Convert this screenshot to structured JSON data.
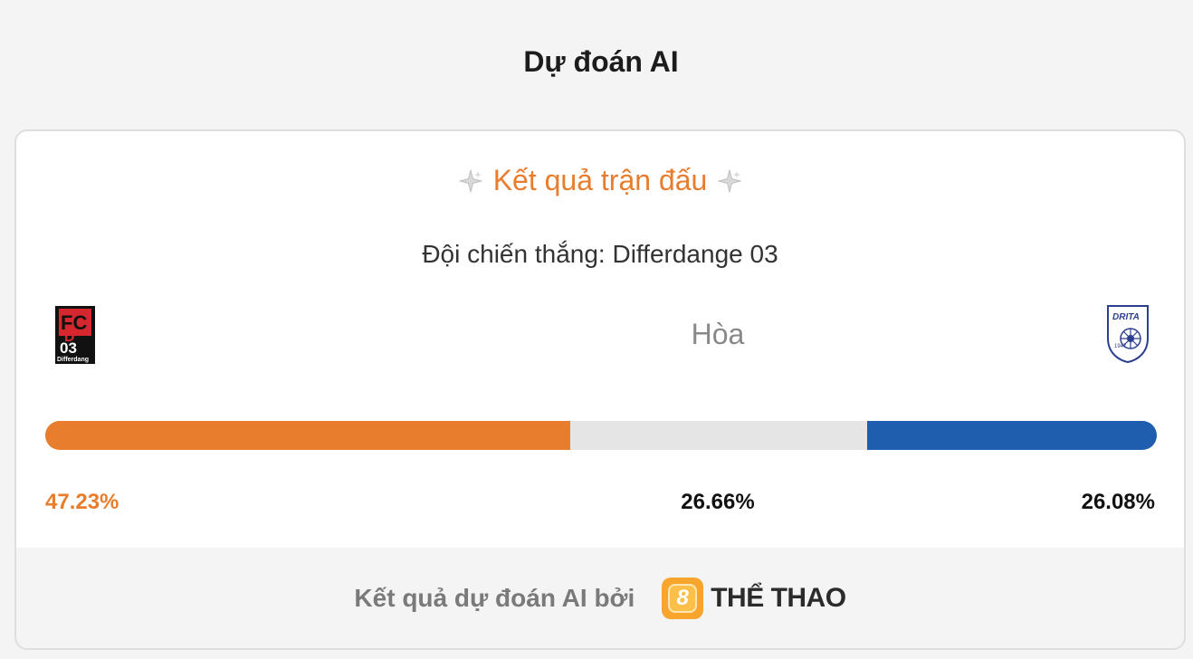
{
  "page": {
    "title": "Dự đoán AI"
  },
  "card": {
    "heading": "Kết quả trận đấu",
    "winner_prefix": "Đội chiến thắng: ",
    "winner_team": "Differdange 03",
    "draw_label": "Hòa",
    "home_team": {
      "logo_text_top": "FC",
      "logo_text_mid": "D",
      "logo_text_num": "03",
      "logo_caption": "Differdang"
    },
    "away_team": {
      "logo_text": "DRITA",
      "logo_year": "1947"
    },
    "probabilities": {
      "home": 47.23,
      "draw": 26.66,
      "away": 26.08,
      "home_label": "47.23%",
      "draw_label": "26.66%",
      "away_label": "26.08%"
    },
    "colors": {
      "home": "#e87d2d",
      "draw": "#e5e5e5",
      "away": "#1f5eaf"
    }
  },
  "footer": {
    "text": "Kết quả dự đoán AI bởi",
    "brand_mark": "8",
    "brand_name": "THỂ THAO"
  }
}
